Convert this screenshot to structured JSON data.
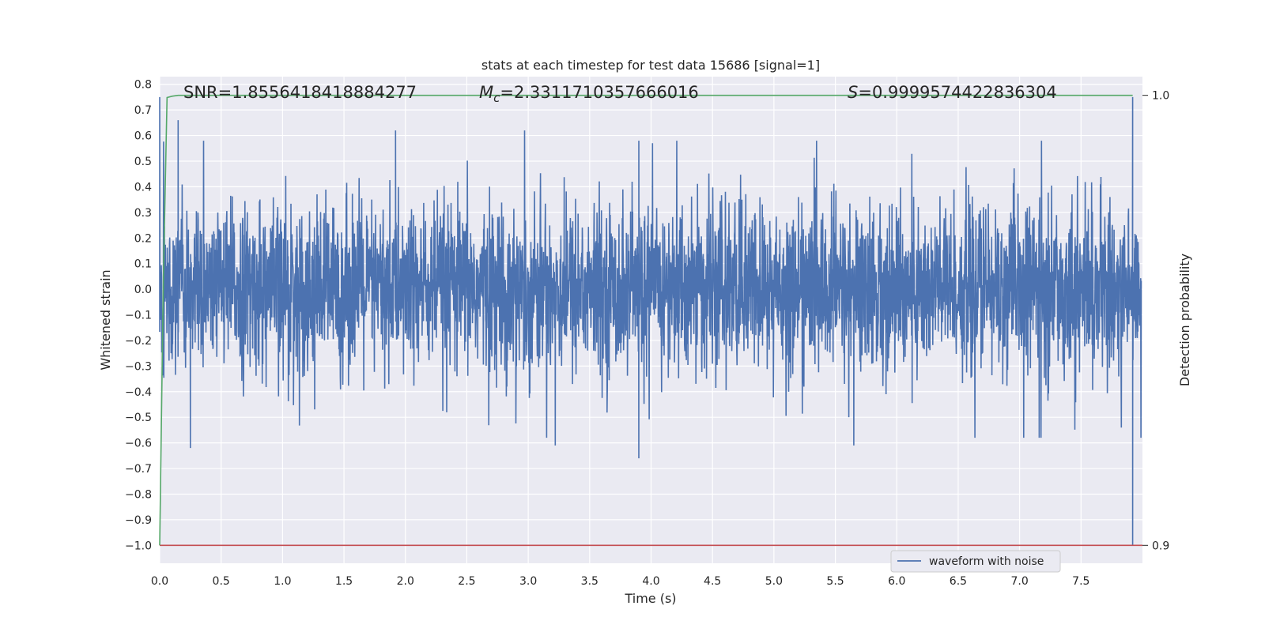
{
  "chart_data": {
    "type": "line",
    "title": "stats at each timestep for test data 15686 [signal=1]",
    "xlabel": "Time (s)",
    "ylabel": "Whitened strain",
    "y2label": "Detection probability",
    "xlim": [
      0.0,
      8.0
    ],
    "ylim": [
      -1.07,
      0.83
    ],
    "y2lim": [
      0.9,
      1.0
    ],
    "x_ticks": [
      "0.0",
      "0.5",
      "1.0",
      "1.5",
      "2.0",
      "2.5",
      "3.0",
      "3.5",
      "4.0",
      "4.5",
      "5.0",
      "5.5",
      "6.0",
      "6.5",
      "7.0",
      "7.5"
    ],
    "y_ticks": [
      "0.8",
      "0.7",
      "0.6",
      "0.5",
      "0.4",
      "0.3",
      "0.2",
      "0.1",
      "0.0",
      "-0.1",
      "-0.2",
      "-0.3",
      "-0.4",
      "-0.5",
      "-0.6",
      "-0.7",
      "-0.8",
      "-0.9",
      "-1.0"
    ],
    "y2_ticks": [
      "1.0",
      "0.9"
    ],
    "grid": true,
    "legend": {
      "placement": "lower-right",
      "entries": [
        "waveform with noise"
      ]
    },
    "annotations": {
      "snr": "SNR=1.8556418418884277",
      "mc_symbol": "M",
      "mc_subscript": "c",
      "mc_value": "=2.3311710357666016",
      "s_symbol": "S",
      "s_value": "=0.9999574422836304"
    },
    "series": [
      {
        "name": "waveform with noise",
        "axis": "left",
        "color": "#4c72b0",
        "sample_rate_hz": 2048,
        "description_values": "dense noise roughly within [-0.45, 0.45] with occasional spikes to about +/-0.66; extremes near t=0.0 (0.75) and t=7.92 (0.75, -1.0)",
        "notable_points": [
          {
            "x": 0.0,
            "y": 0.75
          },
          {
            "x": 0.15,
            "y": 0.66
          },
          {
            "x": 0.25,
            "y": -0.62
          },
          {
            "x": 1.92,
            "y": 0.62
          },
          {
            "x": 2.97,
            "y": 0.62
          },
          {
            "x": 3.22,
            "y": -0.61
          },
          {
            "x": 3.9,
            "y": -0.66
          },
          {
            "x": 5.65,
            "y": -0.61
          },
          {
            "x": 7.92,
            "y": 0.75
          },
          {
            "x": 7.92,
            "y": -1.0
          }
        ]
      },
      {
        "name": "detection probability",
        "axis": "right",
        "color": "#55a868",
        "x": [
          0.0,
          0.03,
          0.06,
          0.1,
          0.15,
          7.92
        ],
        "y": [
          0.9,
          0.96,
          0.9995,
          0.9998,
          1.0,
          1.0
        ]
      },
      {
        "name": "threshold",
        "axis": "left",
        "color": "#c44e52",
        "x": [
          0.0,
          8.0
        ],
        "y": [
          -1.0,
          -1.0
        ]
      }
    ]
  }
}
